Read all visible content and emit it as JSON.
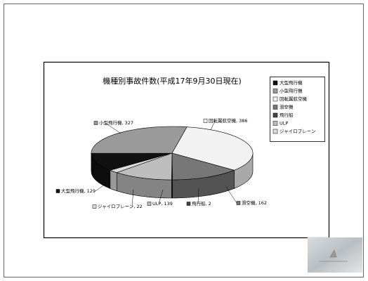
{
  "chart_data": {
    "type": "pie",
    "title": "機種別事故件数(平成17年9月30日現在)",
    "categories": [
      "大型飛行機",
      "小型飛行機",
      "回転翼航空機",
      "滑空機",
      "飛行船",
      "ULP",
      "ジャイロプレーン"
    ],
    "values": [
      129,
      327,
      386,
      162,
      2,
      139,
      22
    ],
    "value_labels": [
      "大型飛行機, 129",
      "小型飛行機, 327",
      "回転翼航空機, 386",
      "滑空機, 162",
      "飛行船, 2",
      "ULP, 139",
      "ジャイロプレーン, 22"
    ],
    "colors": [
      "#111111",
      "#9a9a9a",
      "#f2f2f2",
      "#777777",
      "#444444",
      "#bdbdbd",
      "#dcdcdc"
    ],
    "legend": "right"
  }
}
